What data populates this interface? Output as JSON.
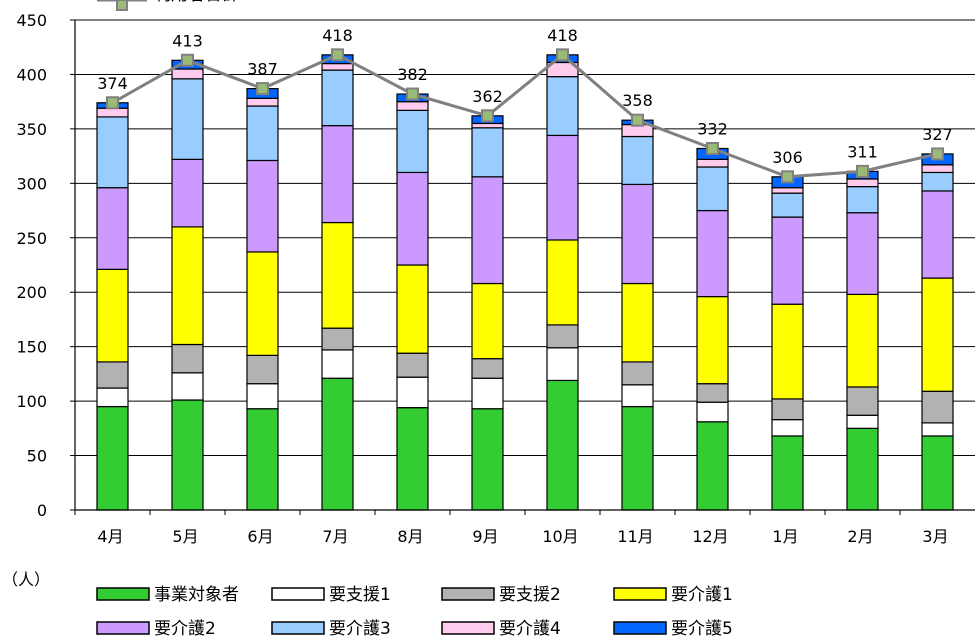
{
  "chart_data": {
    "type": "bar",
    "stacked": true,
    "unit": "（人）",
    "ylim": [
      0,
      450
    ],
    "yticks": [
      0,
      50,
      100,
      150,
      200,
      250,
      300,
      350,
      400,
      450
    ],
    "grid": true,
    "legend_position": "bottom",
    "categories": [
      "4月",
      "5月",
      "6月",
      "7月",
      "8月",
      "9月",
      "10月",
      "11月",
      "12月",
      "1月",
      "2月",
      "3月"
    ],
    "series": [
      {
        "name": "事業対象者",
        "color": "#33cc33",
        "values": [
          95,
          101,
          93,
          121,
          94,
          93,
          119,
          95,
          81,
          68,
          75,
          68
        ]
      },
      {
        "name": "要支援1",
        "color": "#ffffff",
        "values": [
          17,
          25,
          23,
          26,
          28,
          28,
          30,
          20,
          18,
          15,
          12,
          12
        ]
      },
      {
        "name": "要支援2",
        "color": "#b2b2b2",
        "values": [
          24,
          26,
          26,
          20,
          22,
          18,
          21,
          21,
          17,
          19,
          26,
          29
        ]
      },
      {
        "name": "要介護1",
        "color": "#ffff00",
        "values": [
          85,
          108,
          95,
          97,
          81,
          69,
          78,
          72,
          80,
          87,
          85,
          104
        ]
      },
      {
        "name": "要介護2",
        "color": "#cc99ff",
        "values": [
          75,
          62,
          84,
          89,
          85,
          98,
          96,
          91,
          79,
          80,
          75,
          80
        ]
      },
      {
        "name": "要介護3",
        "color": "#99ccff",
        "values": [
          65,
          74,
          50,
          51,
          57,
          45,
          54,
          44,
          40,
          22,
          24,
          17
        ]
      },
      {
        "name": "要介護4",
        "color": "#ffccee",
        "values": [
          8,
          9,
          7,
          6,
          8,
          4,
          13,
          11,
          7,
          5,
          7,
          7
        ]
      },
      {
        "name": "要介護5",
        "color": "#0066ff",
        "values": [
          5,
          8,
          9,
          8,
          7,
          7,
          7,
          4,
          10,
          10,
          7,
          10
        ]
      }
    ],
    "total_series": {
      "name": "利用者合計",
      "color": "#808080",
      "marker_color": "#99bb77",
      "values": [
        374,
        413,
        387,
        418,
        382,
        362,
        418,
        358,
        332,
        306,
        311,
        327
      ]
    }
  }
}
